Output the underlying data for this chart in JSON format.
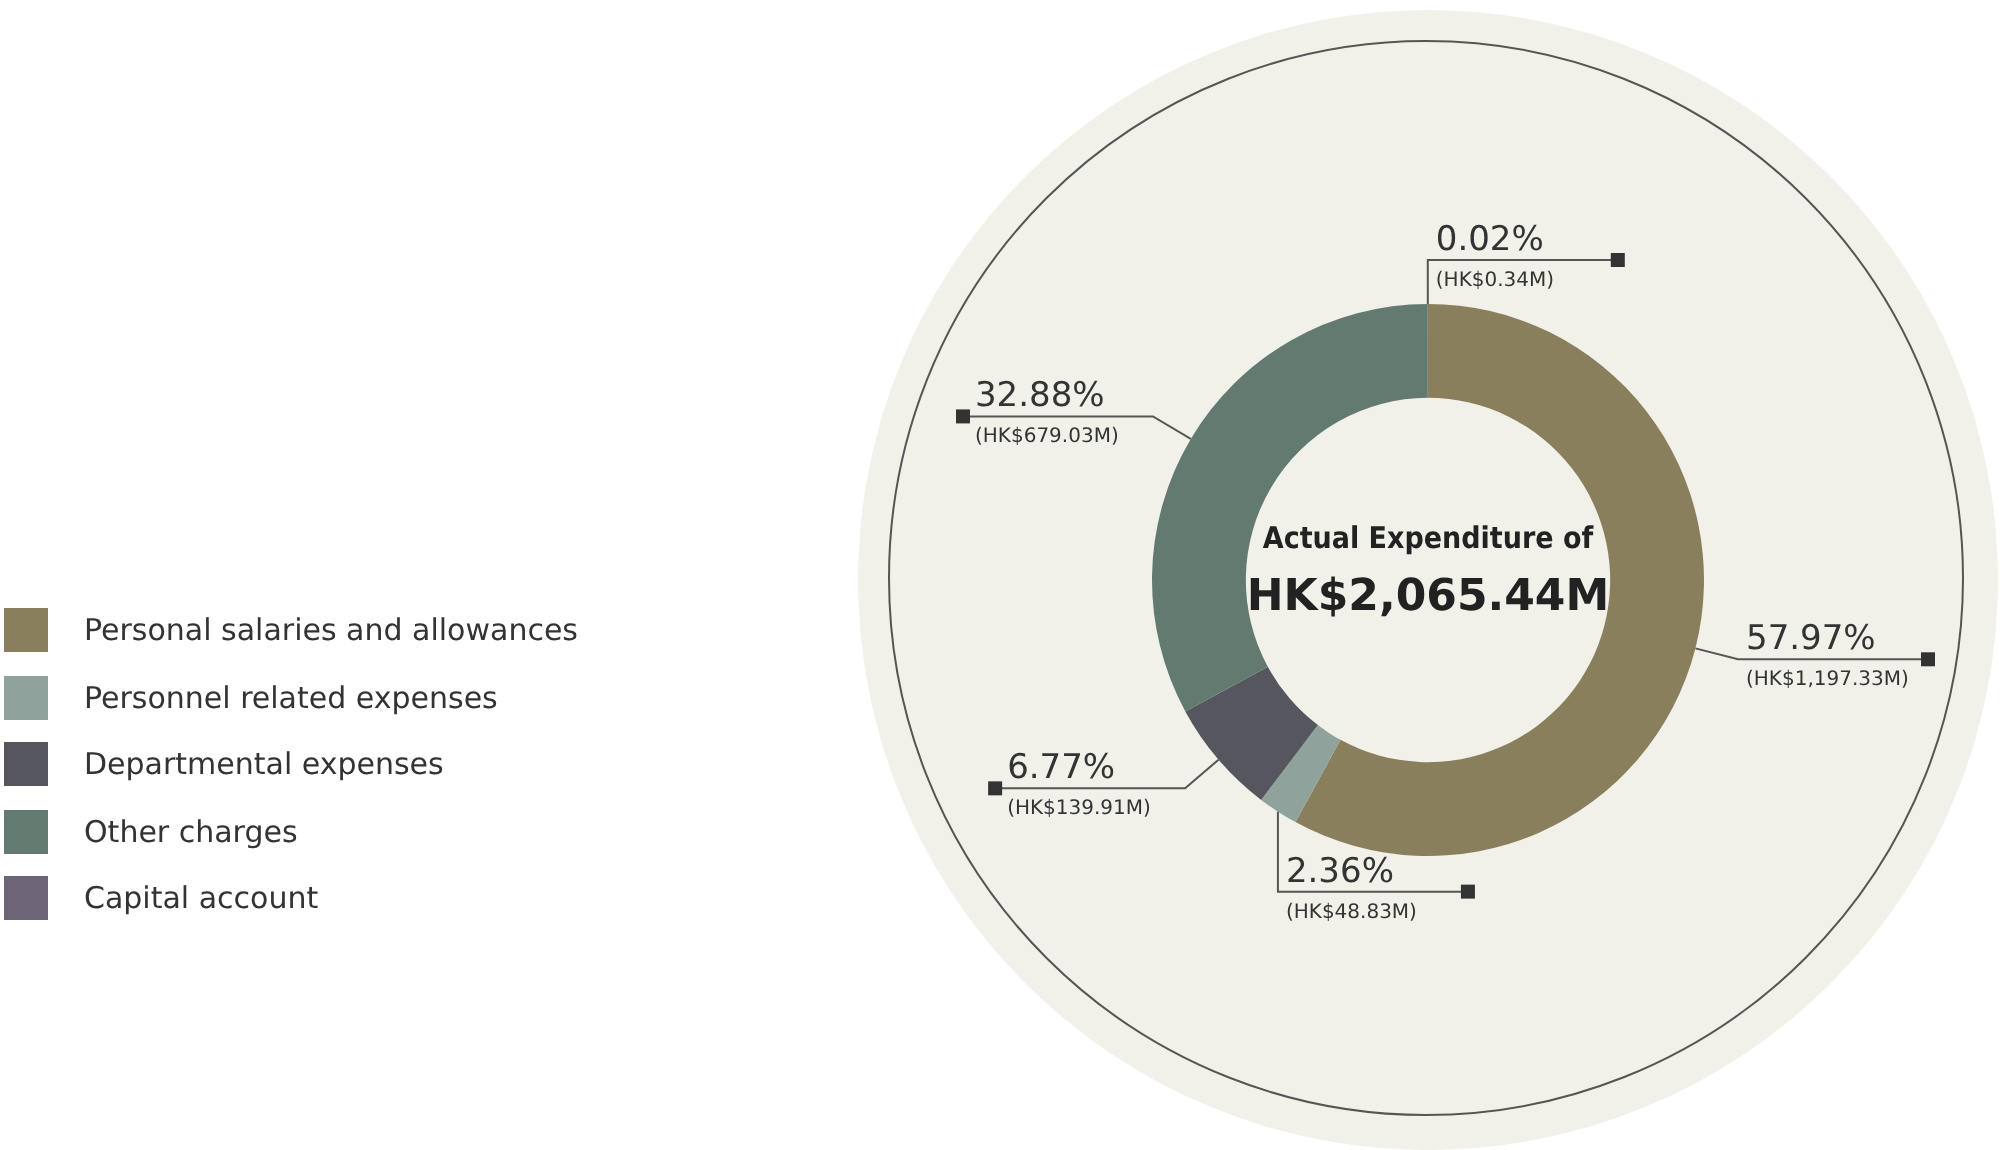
{
  "chart_data": {
    "type": "donut",
    "title": "Actual Expenditure of",
    "subtitle": "HK$2,065.44M",
    "categories": [
      "Personal salaries and allowances",
      "Personnel related expenses",
      "Departmental expenses",
      "Other charges",
      "Capital account"
    ],
    "values": [
      57.97,
      2.36,
      6.77,
      32.88,
      0.02
    ],
    "colors": [
      "#8a7f5c",
      "#8fa39c",
      "#56565f",
      "#627a70",
      "#6e6478"
    ],
    "value_labels": [
      "57.97%\n(HK$1,197.33M)",
      "2.36%\n(HK$48.83M)",
      "6.77%\n(HK$139.91M)",
      "32.88%\n(HK$679.03M)",
      "0.02%\n(HK$0.34M)"
    ],
    "legend": "left"
  }
}
